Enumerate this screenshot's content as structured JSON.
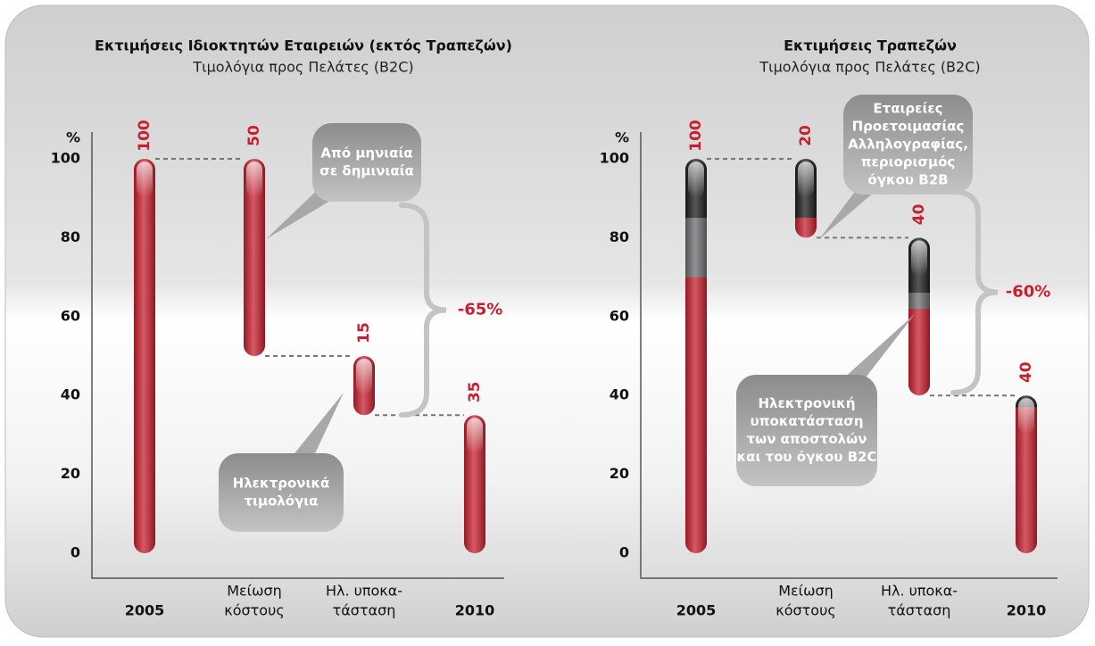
{
  "chart_data": [
    {
      "type": "waterfall",
      "title": "Εκτιμήσεις Ιδιοκτητών Εταιρειών (εκτός Τραπεζών)",
      "subtitle": "Τιμολόγια προς Πελάτες (B2C)",
      "y_label": "%",
      "categories": [
        [
          "2005"
        ],
        [
          "Μείωση",
          "κόστους"
        ],
        [
          "Ηλ. υποκα-",
          "τάσταση"
        ],
        [
          "2010"
        ]
      ],
      "values": [
        100,
        50,
        15,
        35
      ],
      "totals": [
        true,
        false,
        false,
        true
      ],
      "color": "#c8202f",
      "ylim": [
        0,
        100
      ],
      "yticks": [
        0,
        20,
        40,
        60,
        80,
        100
      ],
      "change_label": "-65%",
      "callouts": [
        {
          "lines": [
            "Από μηνιαία",
            "σε δημινιαία"
          ]
        },
        {
          "lines": [
            "Ηλεκτρονικά",
            "τιμολόγια"
          ]
        }
      ]
    },
    {
      "type": "waterfall",
      "title": "Εκτιμήσεις Τραπεζών",
      "subtitle": "Τιμολόγια προς Πελάτες (B2C)",
      "y_label": "%",
      "categories": [
        [
          "2005"
        ],
        [
          "Μείωση",
          "κόστους"
        ],
        [
          "Ηλ. υποκα-",
          "τάσταση"
        ],
        [
          "2010"
        ]
      ],
      "values": [
        100,
        20,
        40,
        40
      ],
      "totals": [
        true,
        false,
        false,
        true
      ],
      "segment_colors": [
        "#c8202f",
        "#6d6e70",
        "#1e1e1e"
      ],
      "segments": [
        [
          70,
          15,
          15
        ],
        [
          5,
          0,
          15
        ],
        [
          22,
          4,
          14
        ],
        [
          37,
          0,
          3
        ]
      ],
      "color": "#c8202f",
      "ylim": [
        0,
        100
      ],
      "yticks": [
        0,
        20,
        40,
        60,
        80,
        100
      ],
      "change_label": "-60%",
      "callouts": [
        {
          "lines": [
            "Εταιρείες",
            "Προετοιμασίας",
            "Αλληλογραφίας,",
            "περιορισμός",
            "όγκου B2B"
          ]
        },
        {
          "lines": [
            "Ηλεκτρονική",
            "υποκατάσταση",
            "των αποστολών",
            "και του όγκου B2C"
          ]
        }
      ]
    }
  ]
}
